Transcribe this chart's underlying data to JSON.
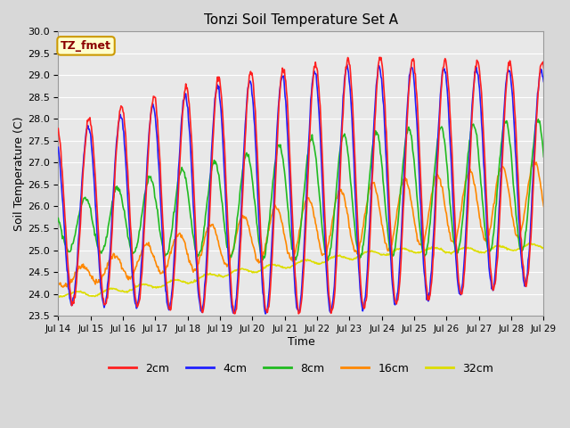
{
  "title": "Tonzi Soil Temperature Set A",
  "xlabel": "Time",
  "ylabel": "Soil Temperature (C)",
  "ylim": [
    23.5,
    30.0
  ],
  "annotation_text": "TZ_fmet",
  "annotation_bg": "#ffffcc",
  "annotation_border": "#cc9900",
  "series_colors": {
    "2cm": "#ff2020",
    "4cm": "#2020ff",
    "8cm": "#20bb20",
    "16cm": "#ff8800",
    "32cm": "#dddd00"
  },
  "bg_color": "#e8e8e8",
  "grid_color": "#ffffff",
  "xtick_labels": [
    "Jul 14",
    "Jul 15",
    "Jul 16",
    "Jul 17",
    "Jul 18",
    "Jul 19",
    "Jul 20",
    "Jul 21",
    "Jul 22",
    "Jul 23",
    "Jul 24",
    "Jul 25",
    "Jul 26",
    "Jul 27",
    "Jul 28",
    "Jul 29"
  ],
  "figsize": [
    6.4,
    4.8
  ],
  "dpi": 100
}
